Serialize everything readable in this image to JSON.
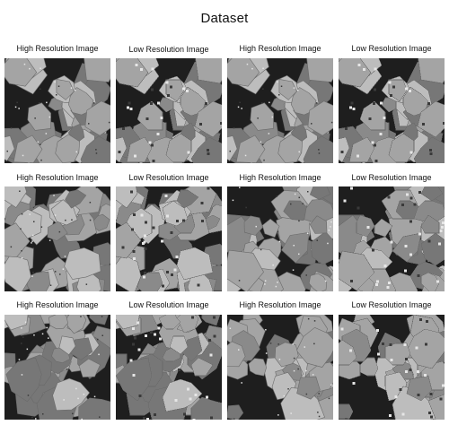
{
  "title": "Dataset",
  "rows": [
    {
      "cells": [
        {
          "label": "High Resolution Image",
          "variant": "high",
          "seed": 11
        },
        {
          "label": "Low Resolution Image",
          "variant": "low",
          "seed": 11
        },
        {
          "label": "High Resolution Image",
          "variant": "high",
          "seed": 11
        },
        {
          "label": "Low Resolution Image",
          "variant": "low",
          "seed": 11
        }
      ]
    },
    {
      "cells": [
        {
          "label": "High Resolution Image",
          "variant": "high",
          "seed": 23
        },
        {
          "label": "Low Resolution Image",
          "variant": "low",
          "seed": 23
        },
        {
          "label": "High Resolution Image",
          "variant": "high",
          "seed": 37
        },
        {
          "label": "Low Resolution Image",
          "variant": "low",
          "seed": 37
        }
      ]
    },
    {
      "cells": [
        {
          "label": "High Resolution Image",
          "variant": "high",
          "seed": 41
        },
        {
          "label": "Low Resolution Image",
          "variant": "low",
          "seed": 41
        },
        {
          "label": "High Resolution Image",
          "variant": "high",
          "seed": 53
        },
        {
          "label": "Low Resolution Image",
          "variant": "low",
          "seed": 53
        }
      ]
    }
  ],
  "colors": {
    "pore": "#1e1e1e",
    "matrix": "#8a8a8a",
    "grain_light": "#bdbdbd",
    "grain_mid": "#a4a4a4",
    "grain_dark": "#777777"
  }
}
